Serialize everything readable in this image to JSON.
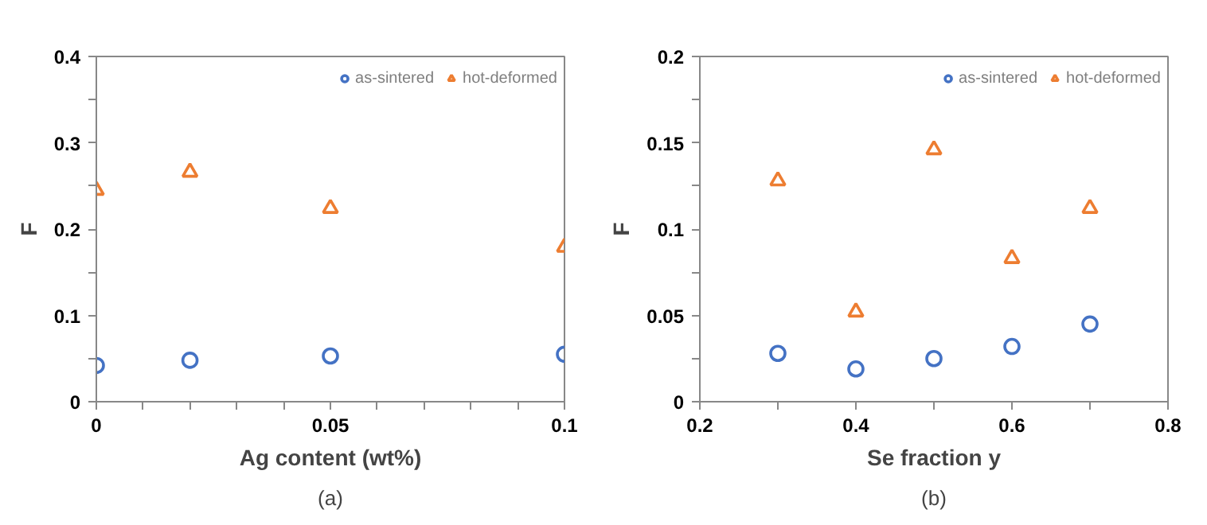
{
  "chart_data": [
    {
      "type": "scatter",
      "xlabel": "Ag content (wt%)",
      "ylabel": "F",
      "annotations": [
        "(a)"
      ],
      "legend": "top right",
      "grid": false,
      "xlim": [
        0,
        0.1
      ],
      "xticks": [
        0,
        {
          "value": 0.01,
          "label": null
        },
        {
          "value": 0.02,
          "label": null
        },
        {
          "value": 0.03,
          "label": null
        },
        {
          "value": 0.04,
          "label": null
        },
        0.05,
        {
          "value": 0.06,
          "label": null
        },
        {
          "value": 0.07,
          "label": null
        },
        {
          "value": 0.08,
          "label": null
        },
        {
          "value": 0.09,
          "label": null
        },
        0.1
      ],
      "ylim": [
        0,
        0.4
      ],
      "yticks": [
        0,
        {
          "value": 0.05,
          "label": null
        },
        0.1,
        {
          "value": 0.15,
          "label": null
        },
        0.2,
        {
          "value": 0.25,
          "label": null
        },
        0.3,
        {
          "value": 0.35,
          "label": null
        },
        0.4
      ],
      "x": [
        0,
        0.02,
        0.05,
        0.1
      ],
      "series": [
        {
          "name": "as-sintered",
          "color": "#4472c4",
          "marker": "circle",
          "values": [
            0.042,
            0.048,
            0.053,
            0.055
          ]
        },
        {
          "name": "hot-deformed",
          "color": "#ed7d31",
          "marker": "triangle",
          "values": [
            0.245,
            0.266,
            0.224,
            0.179
          ]
        }
      ]
    },
    {
      "type": "scatter",
      "xlabel": "Se fraction y",
      "ylabel": "F",
      "annotations": [
        "(b)"
      ],
      "legend": "top right",
      "grid": false,
      "xlim": [
        0.2,
        0.8
      ],
      "xticks": [
        0.2,
        {
          "value": 0.3,
          "label": null
        },
        0.4,
        {
          "value": 0.5,
          "label": null
        },
        0.6,
        {
          "value": 0.7,
          "label": null
        },
        0.8
      ],
      "ylim": [
        0,
        0.2
      ],
      "yticks": [
        0,
        {
          "value": 0.025,
          "label": null
        },
        0.05,
        {
          "value": 0.075,
          "label": null
        },
        0.1,
        {
          "value": 0.125,
          "label": null
        },
        0.15,
        {
          "value": 0.175,
          "label": null
        },
        0.2
      ],
      "x": [
        0.3,
        0.4,
        0.5,
        0.6,
        0.7
      ],
      "series": [
        {
          "name": "as-sintered",
          "color": "#4472c4",
          "marker": "circle",
          "values": [
            0.028,
            0.019,
            0.025,
            0.032,
            0.045
          ]
        },
        {
          "name": "hot-deformed",
          "color": "#ed7d31",
          "marker": "triangle",
          "values": [
            0.128,
            0.052,
            0.146,
            0.083,
            0.112
          ]
        }
      ]
    }
  ]
}
